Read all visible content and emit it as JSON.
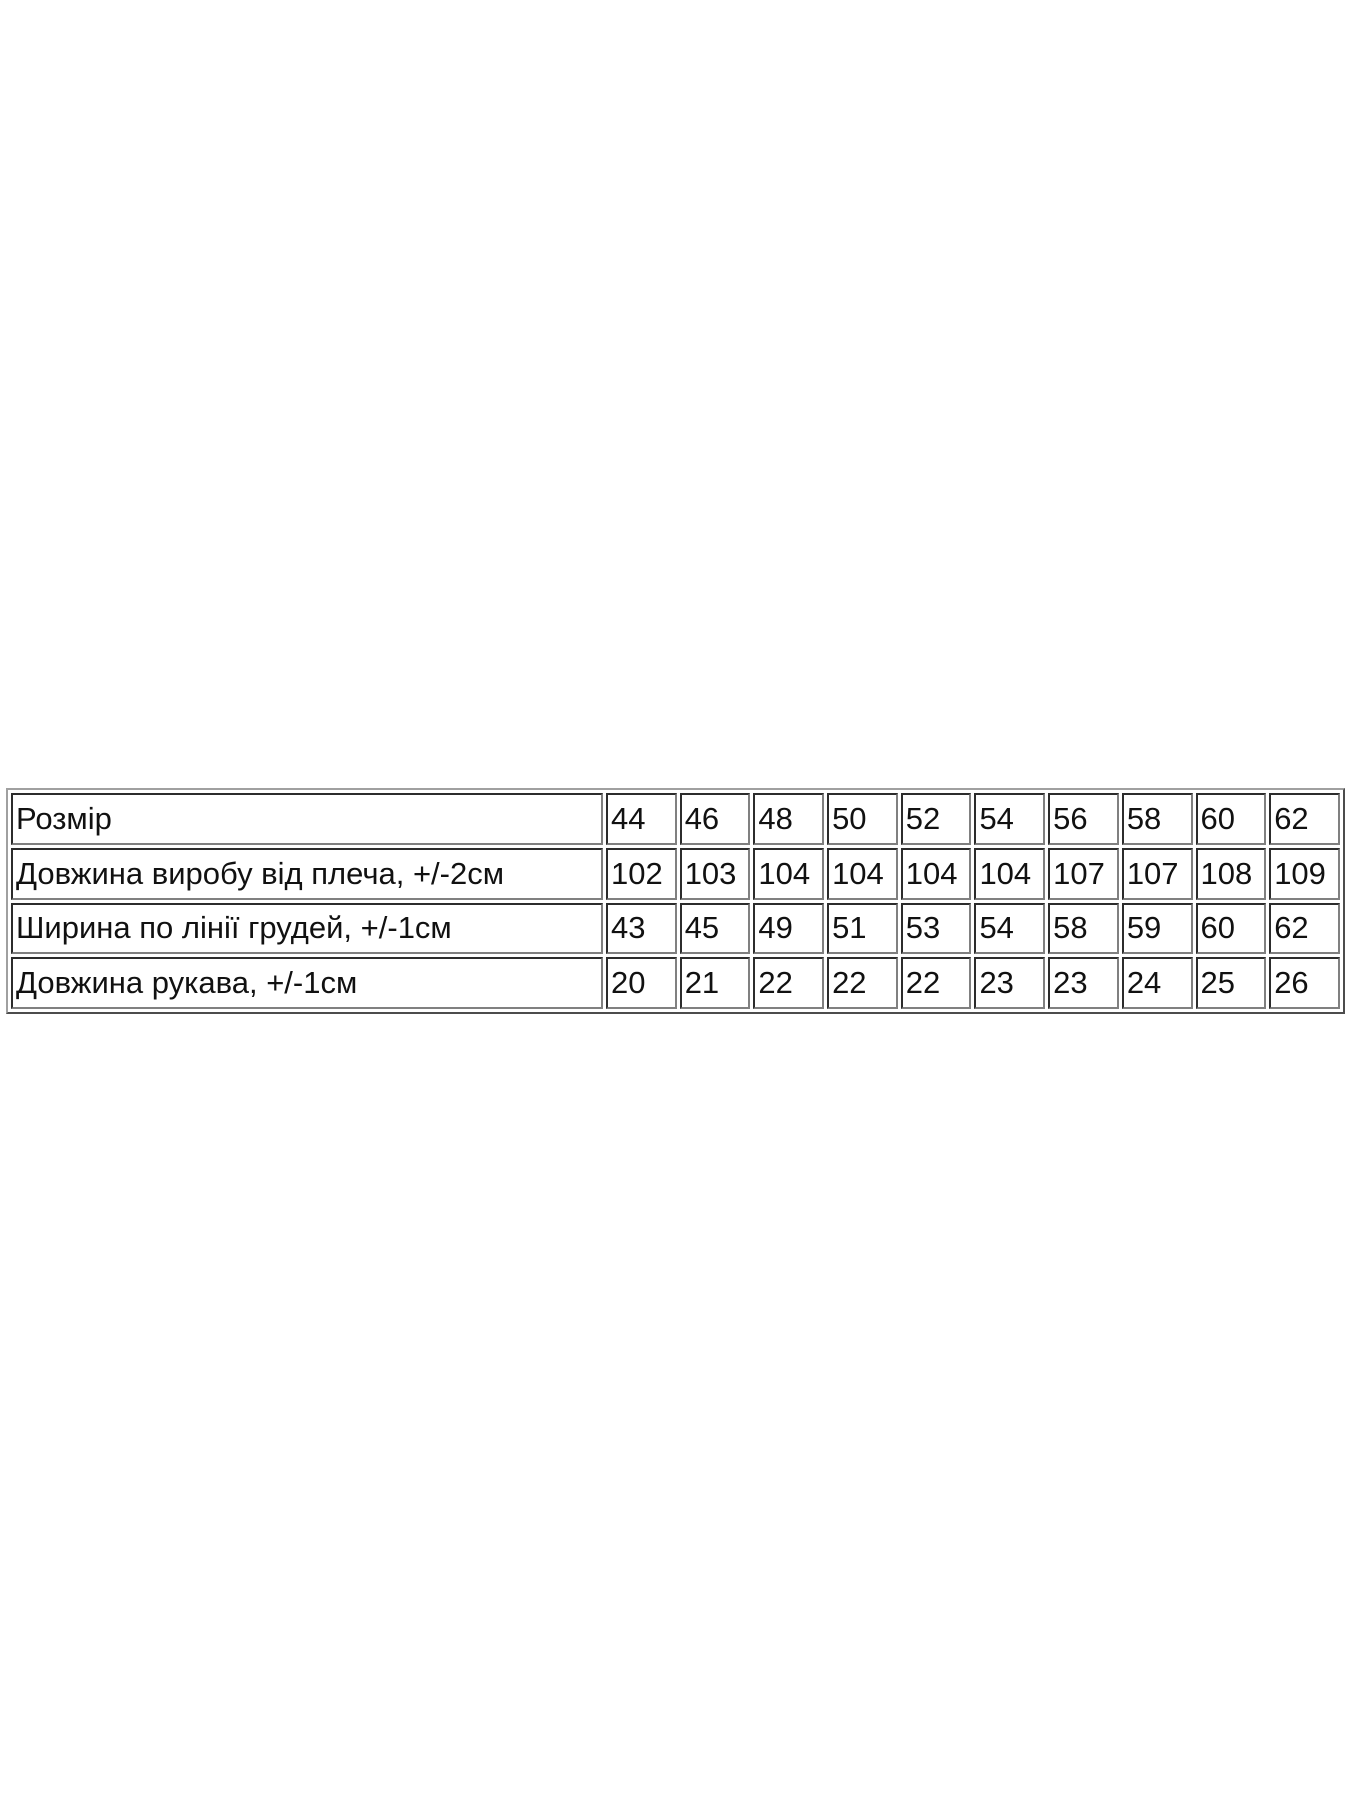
{
  "table": {
    "rows": [
      {
        "label": "Розмір",
        "values": [
          "44",
          "46",
          "48",
          "50",
          "52",
          "54",
          "56",
          "58",
          "60",
          "62"
        ]
      },
      {
        "label": "Довжина виробу від плеча, +/-2см",
        "values": [
          "102",
          "103",
          "104",
          "104",
          "104",
          "104",
          "107",
          "107",
          "108",
          "109"
        ]
      },
      {
        "label": "Ширина по лінії грудей, +/-1см",
        "values": [
          "43",
          "45",
          "49",
          "51",
          "53",
          "54",
          "58",
          "59",
          "60",
          "62"
        ]
      },
      {
        "label": "Довжина рукава, +/-1см",
        "values": [
          "20",
          "21",
          "22",
          "22",
          "22",
          "23",
          "23",
          "24",
          "25",
          "26"
        ]
      }
    ]
  }
}
